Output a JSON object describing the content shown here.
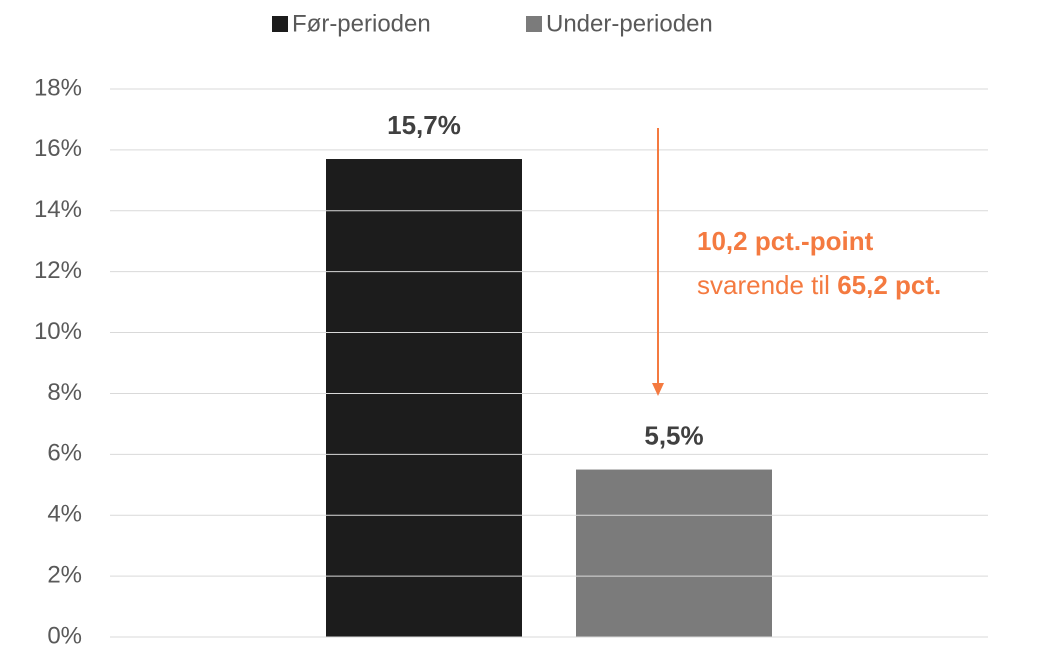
{
  "chart_data": {
    "type": "bar",
    "categories": [
      null
    ],
    "series": [
      {
        "name": "Før-perioden",
        "color": "#1c1c1c",
        "values": [
          15.7
        ],
        "value_labels": [
          "15,7%"
        ]
      },
      {
        "name": "Under-perioden",
        "color": "#7b7b7b",
        "values": [
          5.5
        ],
        "value_labels": [
          "5,5%"
        ]
      }
    ],
    "ylim": [
      0,
      18
    ],
    "yticks": [
      {
        "value": 0,
        "label": "0%"
      },
      {
        "value": 2,
        "label": "2%"
      },
      {
        "value": 4,
        "label": "4%"
      },
      {
        "value": 6,
        "label": "6%"
      },
      {
        "value": 8,
        "label": "8%"
      },
      {
        "value": 10,
        "label": "10%"
      },
      {
        "value": 12,
        "label": "12%"
      },
      {
        "value": 14,
        "label": "14%"
      },
      {
        "value": 16,
        "label": "16%"
      },
      {
        "value": 18,
        "label": "18%"
      }
    ],
    "grid": true,
    "legend": "top",
    "annotation": {
      "line1": "10,2 pct.-point",
      "line2_prefix": "svarende til",
      "line2_bold": "65,2 pct.",
      "color": "#f47a40"
    }
  }
}
